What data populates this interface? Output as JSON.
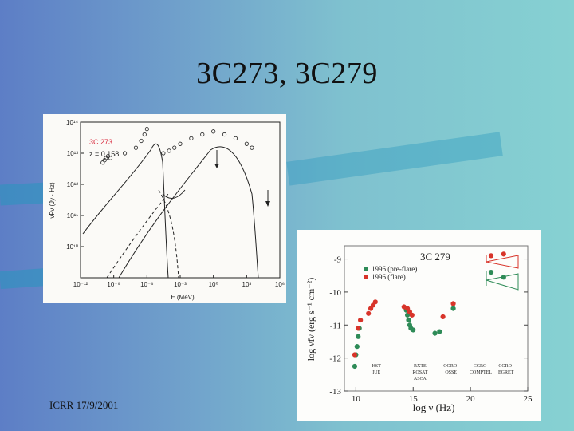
{
  "slide": {
    "title": "3C273, 3C279",
    "footer": "ICRR 17/9/2001"
  },
  "colors": {
    "bg_left": "#5d7ec6",
    "bg_right": "#86d1d2",
    "red_label": "#d8263a",
    "green_points": "#2e8b57",
    "red_points": "#d8342a"
  },
  "chart_data": [
    {
      "type": "scatter",
      "title": "",
      "source_label": "3C 273",
      "redshift_label": "z = 0.158",
      "xlabel": "E (MeV)",
      "ylabel": "νFν (Jy · Hz)",
      "x_scale": "log",
      "y_scale": "log",
      "xlim": [
        1e-12,
        1000000.0
      ],
      "ylim": [
        1000000000.0,
        100000000000000.0
      ],
      "x_tick_labels": [
        "10⁻¹²",
        "10⁻⁹",
        "10⁻⁶",
        "10⁻³",
        "10⁰",
        "10³",
        "10⁶"
      ],
      "y_tick_labels": [
        "10¹⁴",
        "10¹³",
        "10¹²",
        "10¹¹",
        "10¹⁰"
      ],
      "series": [
        {
          "points": [
            [
              1e-10,
              5000000000000.0
            ],
            [
              1.5e-10,
              6000000000000.0
            ],
            [
              2e-10,
              7000000000000.0
            ],
            [
              3e-10,
              8000000000000.0
            ],
            [
              5e-10,
              7000000000000.0
            ],
            [
              1e-08,
              10000000000000.0
            ],
            [
              1e-07,
              15000000000000.0
            ],
            [
              3e-07,
              25000000000000.0
            ],
            [
              6e-07,
              40000000000000.0
            ],
            [
              1e-06,
              60000000000000.0
            ],
            [
              3e-05,
              10000000000000.0
            ],
            [
              0.0001,
              12000000000000.0
            ],
            [
              0.0003,
              15000000000000.0
            ],
            [
              0.001,
              20000000000000.0
            ],
            [
              0.01,
              30000000000000.0
            ],
            [
              0.1,
              40000000000000.0
            ],
            [
              1,
              50000000000000.0
            ],
            [
              10,
              40000000000000.0
            ],
            [
              100,
              30000000000000.0
            ],
            [
              1000,
              20000000000000.0
            ],
            [
              3000,
              15000000000000.0
            ]
          ]
        }
      ]
    },
    {
      "type": "scatter",
      "title": "3C 279",
      "xlabel": "log ν (Hz)",
      "ylabel": "log νfν (erg s⁻¹ cm⁻²)",
      "xlim": [
        9,
        25
      ],
      "ylim": [
        -13,
        -8.6
      ],
      "x_ticks": [
        10,
        15,
        20,
        25
      ],
      "y_ticks": [
        -9,
        -10,
        -11,
        -12,
        -13
      ],
      "band_labels": [
        {
          "x": 11.8,
          "lines": [
            "HST",
            "IUE"
          ]
        },
        {
          "x": 15.6,
          "lines": [
            "RXTE",
            "ROSAT",
            "ASCA"
          ]
        },
        {
          "x": 18.3,
          "lines": [
            "OGRO-",
            "OSSE"
          ]
        },
        {
          "x": 20.9,
          "lines": [
            "CGRO-",
            "COMPTEL"
          ]
        },
        {
          "x": 23.1,
          "lines": [
            "CGRO-",
            "EGRET"
          ]
        }
      ],
      "legend_position": "top-left",
      "series": [
        {
          "name": "1996 (pre-flare)",
          "color": "#2e8b57",
          "points": [
            [
              9.9,
              -12.25
            ],
            [
              10.0,
              -11.9
            ],
            [
              10.1,
              -11.65
            ],
            [
              10.2,
              -11.35
            ],
            [
              10.3,
              -11.1
            ],
            [
              14.4,
              -10.55
            ],
            [
              14.5,
              -10.7
            ],
            [
              14.6,
              -10.85
            ],
            [
              14.7,
              -11.0
            ],
            [
              14.8,
              -11.1
            ],
            [
              15.0,
              -11.15
            ],
            [
              16.9,
              -11.25
            ],
            [
              17.3,
              -11.2
            ],
            [
              18.5,
              -10.5
            ],
            [
              21.8,
              -9.4
            ],
            [
              22.9,
              -9.55
            ]
          ]
        },
        {
          "name": "1996 (flare)",
          "color": "#d8342a",
          "points": [
            [
              9.9,
              -11.9
            ],
            [
              10.2,
              -11.1
            ],
            [
              10.4,
              -10.85
            ],
            [
              11.1,
              -10.65
            ],
            [
              11.3,
              -10.5
            ],
            [
              11.5,
              -10.4
            ],
            [
              11.7,
              -10.3
            ],
            [
              14.2,
              -10.45
            ],
            [
              14.5,
              -10.5
            ],
            [
              14.7,
              -10.6
            ],
            [
              14.9,
              -10.7
            ],
            [
              17.6,
              -10.75
            ],
            [
              18.5,
              -10.35
            ],
            [
              21.8,
              -8.9
            ],
            [
              22.9,
              -8.85
            ]
          ]
        }
      ]
    }
  ]
}
